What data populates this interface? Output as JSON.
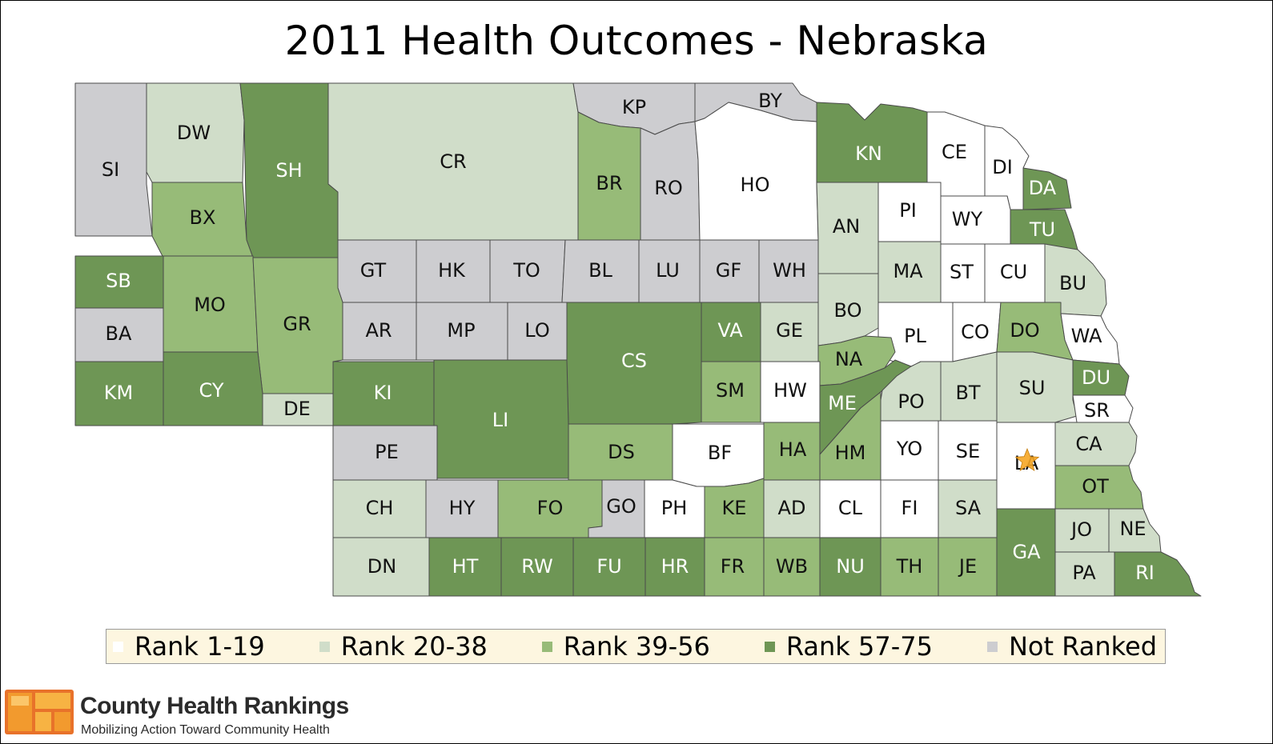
{
  "title": "2011 Health Outcomes - Nebraska",
  "colors": {
    "rank_1_19": "#ffffff",
    "rank_20_38": "#d0ddc9",
    "rank_39_56": "#97bb78",
    "rank_57_75": "#6e9655",
    "not_ranked": "#cdcdd0",
    "star": "#f6a623",
    "legend_bg": "#fdf6e0"
  },
  "legend": [
    {
      "key": "rank_1_19",
      "label": "Rank 1-19"
    },
    {
      "key": "rank_20_38",
      "label": "Rank 20-38"
    },
    {
      "key": "rank_39_56",
      "label": "Rank 39-56"
    },
    {
      "key": "rank_57_75",
      "label": "Rank 57-75"
    },
    {
      "key": "not_ranked",
      "label": "Not Ranked"
    }
  ],
  "counties": [
    {
      "code": "SI",
      "class": "not_ranked"
    },
    {
      "code": "DW",
      "class": "rank_20_38"
    },
    {
      "code": "SH",
      "class": "rank_57_75"
    },
    {
      "code": "CR",
      "class": "rank_20_38"
    },
    {
      "code": "KP",
      "class": "not_ranked"
    },
    {
      "code": "BY",
      "class": "not_ranked"
    },
    {
      "code": "BR",
      "class": "rank_39_56"
    },
    {
      "code": "RO",
      "class": "not_ranked"
    },
    {
      "code": "HO",
      "class": "rank_1_19"
    },
    {
      "code": "KN",
      "class": "rank_57_75"
    },
    {
      "code": "CE",
      "class": "rank_1_19"
    },
    {
      "code": "DI",
      "class": "rank_1_19"
    },
    {
      "code": "DA",
      "class": "rank_57_75"
    },
    {
      "code": "BX",
      "class": "rank_39_56"
    },
    {
      "code": "AN",
      "class": "rank_20_38"
    },
    {
      "code": "PI",
      "class": "rank_1_19"
    },
    {
      "code": "WY",
      "class": "rank_1_19"
    },
    {
      "code": "TU",
      "class": "rank_57_75"
    },
    {
      "code": "GT",
      "class": "not_ranked"
    },
    {
      "code": "HK",
      "class": "not_ranked"
    },
    {
      "code": "TO",
      "class": "not_ranked"
    },
    {
      "code": "BL",
      "class": "not_ranked"
    },
    {
      "code": "LU",
      "class": "not_ranked"
    },
    {
      "code": "GF",
      "class": "not_ranked"
    },
    {
      "code": "WH",
      "class": "not_ranked"
    },
    {
      "code": "MA",
      "class": "rank_20_38"
    },
    {
      "code": "ST",
      "class": "rank_1_19"
    },
    {
      "code": "CU",
      "class": "rank_1_19"
    },
    {
      "code": "BU",
      "class": "rank_20_38"
    },
    {
      "code": "SB",
      "class": "rank_57_75"
    },
    {
      "code": "MO",
      "class": "rank_39_56"
    },
    {
      "code": "GR",
      "class": "rank_39_56"
    },
    {
      "code": "BA",
      "class": "not_ranked"
    },
    {
      "code": "AR",
      "class": "not_ranked"
    },
    {
      "code": "MP",
      "class": "not_ranked"
    },
    {
      "code": "LO",
      "class": "not_ranked"
    },
    {
      "code": "VA",
      "class": "rank_57_75"
    },
    {
      "code": "GE",
      "class": "rank_20_38"
    },
    {
      "code": "BO",
      "class": "rank_20_38"
    },
    {
      "code": "PL",
      "class": "rank_1_19"
    },
    {
      "code": "CO",
      "class": "rank_1_19"
    },
    {
      "code": "DO",
      "class": "rank_39_56"
    },
    {
      "code": "WA",
      "class": "rank_1_19"
    },
    {
      "code": "CS",
      "class": "rank_57_75"
    },
    {
      "code": "NA",
      "class": "rank_39_56"
    },
    {
      "code": "KM",
      "class": "rank_57_75"
    },
    {
      "code": "CY",
      "class": "rank_57_75"
    },
    {
      "code": "KI",
      "class": "rank_57_75"
    },
    {
      "code": "SM",
      "class": "rank_39_56"
    },
    {
      "code": "HW",
      "class": "rank_1_19"
    },
    {
      "code": "PO",
      "class": "rank_20_38"
    },
    {
      "code": "BT",
      "class": "rank_20_38"
    },
    {
      "code": "SU",
      "class": "rank_20_38"
    },
    {
      "code": "DU",
      "class": "rank_57_75"
    },
    {
      "code": "DE",
      "class": "rank_20_38"
    },
    {
      "code": "LI",
      "class": "rank_57_75"
    },
    {
      "code": "ME",
      "class": "rank_57_75"
    },
    {
      "code": "SR",
      "class": "rank_1_19"
    },
    {
      "code": "PE",
      "class": "not_ranked"
    },
    {
      "code": "DS",
      "class": "rank_39_56"
    },
    {
      "code": "BF",
      "class": "rank_1_19"
    },
    {
      "code": "HA",
      "class": "rank_39_56"
    },
    {
      "code": "HM",
      "class": "rank_39_56"
    },
    {
      "code": "YO",
      "class": "rank_1_19"
    },
    {
      "code": "SE",
      "class": "rank_1_19"
    },
    {
      "code": "LA",
      "class": "rank_1_19"
    },
    {
      "code": "CA",
      "class": "rank_20_38"
    },
    {
      "code": "CH",
      "class": "rank_20_38"
    },
    {
      "code": "HY",
      "class": "not_ranked"
    },
    {
      "code": "FO",
      "class": "rank_39_56"
    },
    {
      "code": "GO",
      "class": "not_ranked"
    },
    {
      "code": "PH",
      "class": "rank_1_19"
    },
    {
      "code": "KE",
      "class": "rank_39_56"
    },
    {
      "code": "AD",
      "class": "rank_20_38"
    },
    {
      "code": "CL",
      "class": "rank_1_19"
    },
    {
      "code": "FI",
      "class": "rank_1_19"
    },
    {
      "code": "SA",
      "class": "rank_20_38"
    },
    {
      "code": "OT",
      "class": "rank_39_56"
    },
    {
      "code": "JO",
      "class": "rank_20_38"
    },
    {
      "code": "NE",
      "class": "rank_20_38"
    },
    {
      "code": "DN",
      "class": "rank_20_38"
    },
    {
      "code": "HT",
      "class": "rank_57_75"
    },
    {
      "code": "RW",
      "class": "rank_57_75"
    },
    {
      "code": "FU",
      "class": "rank_57_75"
    },
    {
      "code": "HR",
      "class": "rank_57_75"
    },
    {
      "code": "FR",
      "class": "rank_39_56"
    },
    {
      "code": "WB",
      "class": "rank_39_56"
    },
    {
      "code": "NU",
      "class": "rank_57_75"
    },
    {
      "code": "TH",
      "class": "rank_39_56"
    },
    {
      "code": "JE",
      "class": "rank_39_56"
    },
    {
      "code": "GA",
      "class": "rank_57_75"
    },
    {
      "code": "PA",
      "class": "rank_20_38"
    },
    {
      "code": "RI",
      "class": "rank_57_75"
    }
  ],
  "marker": {
    "county": "LA",
    "icon": "star-icon"
  },
  "brand": {
    "name": "County Health Rankings",
    "tagline": "Mobilizing Action Toward Community Health",
    "logo_icon": "county-health-rankings-logo-icon"
  }
}
